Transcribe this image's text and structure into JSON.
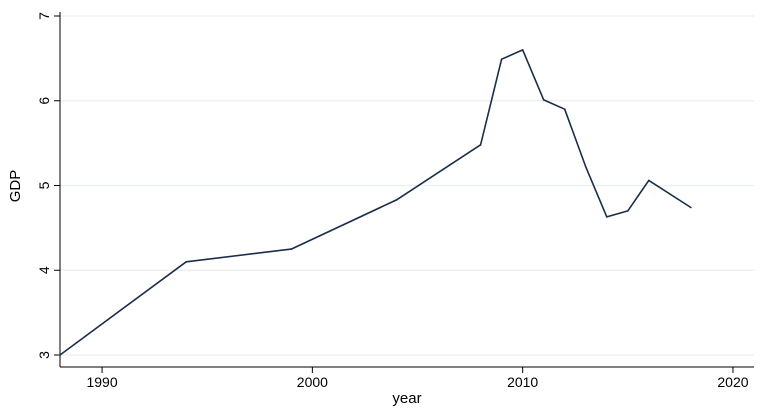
{
  "chart_data": {
    "type": "line",
    "title": "",
    "xlabel": "year",
    "ylabel": "GDP",
    "xlim": [
      1988,
      2021
    ],
    "ylim": [
      3,
      7
    ],
    "x_ticks": [
      1990,
      2000,
      2010,
      2020
    ],
    "y_ticks": [
      3,
      4,
      5,
      6,
      7
    ],
    "grid": "horizontal",
    "series": [
      {
        "name": "",
        "color": "#1a2e4a",
        "x": [
          1988,
          1994,
          1999,
          2004,
          2008,
          2009,
          2010,
          2011,
          2012,
          2013,
          2014,
          2015,
          2016,
          2018
        ],
        "y": [
          3.0,
          4.1,
          4.25,
          4.83,
          5.48,
          6.49,
          6.6,
          6.01,
          5.9,
          5.22,
          4.63,
          4.7,
          5.06,
          4.74
        ]
      }
    ],
    "colors": {
      "line": "#1a2e4a",
      "grid": "#e9eef0",
      "axis": "#000000",
      "background": "#ffffff"
    }
  }
}
